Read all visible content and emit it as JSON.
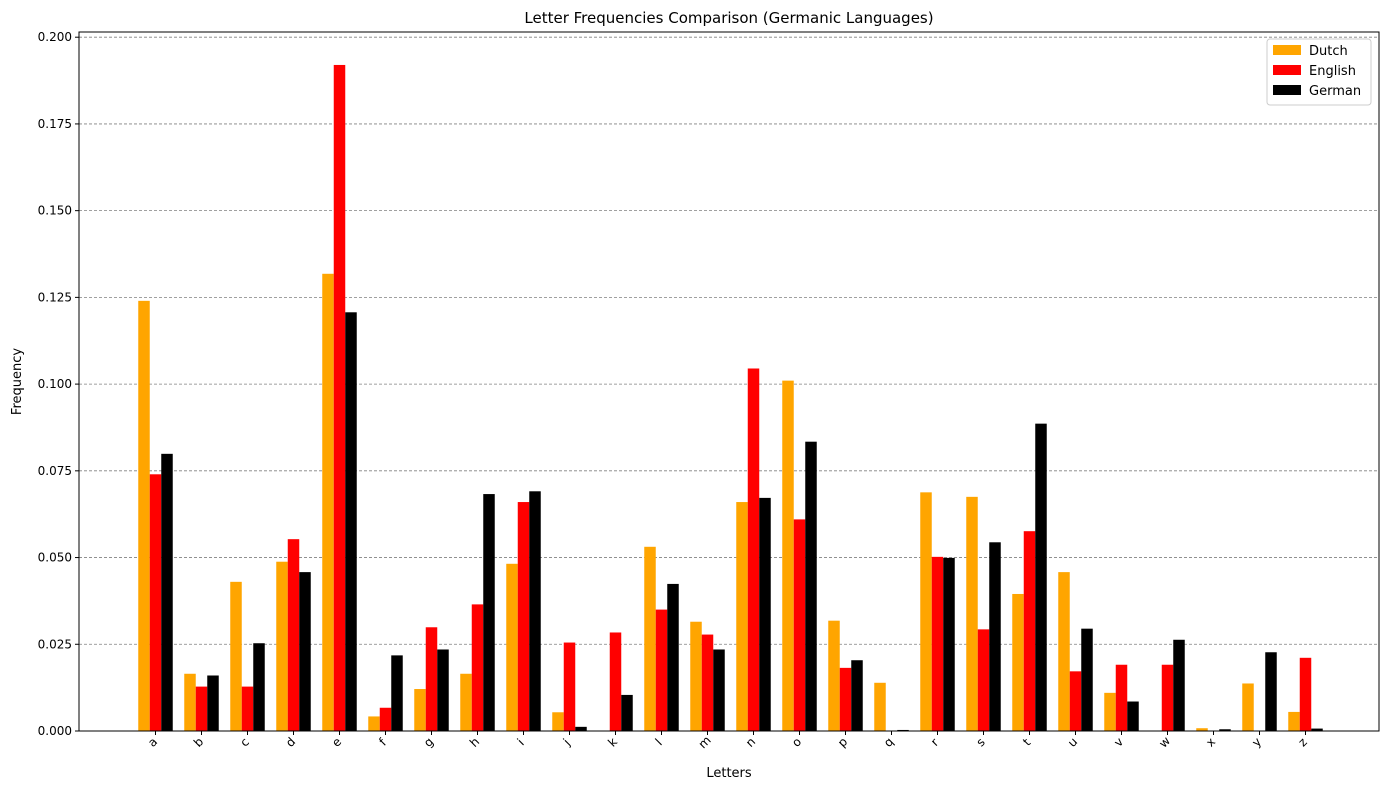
{
  "chart_data": {
    "type": "bar",
    "title": "Letter Frequencies Comparison (Germanic Languages)",
    "xlabel": "Letters",
    "ylabel": "Frequency",
    "ylim": [
      0,
      0.2015
    ],
    "yticks": [
      0.0,
      0.025,
      0.05,
      0.075,
      0.1,
      0.125,
      0.15,
      0.175,
      0.2
    ],
    "ytick_labels": [
      "0.000",
      "0.025",
      "0.050",
      "0.075",
      "0.100",
      "0.125",
      "0.150",
      "0.175",
      "0.200"
    ],
    "grid": "horizontal dashed",
    "legend_position": "top-right",
    "categories": [
      "a",
      "b",
      "c",
      "d",
      "e",
      "f",
      "g",
      "h",
      "i",
      "j",
      "k",
      "l",
      "m",
      "n",
      "o",
      "p",
      "q",
      "r",
      "s",
      "t",
      "u",
      "v",
      "w",
      "x",
      "y",
      "z"
    ],
    "series": [
      {
        "name": "Dutch",
        "color": "#ffa500",
        "values": [
          0.124,
          0.0165,
          0.043,
          0.0488,
          0.1318,
          0.0042,
          0.0121,
          0.0165,
          0.0482,
          0.0054,
          0.0,
          0.0531,
          0.0315,
          0.066,
          0.101,
          0.0318,
          0.0139,
          0.0688,
          0.0675,
          0.0395,
          0.0458,
          0.011,
          0.0,
          0.0008,
          0.0137,
          0.0055
        ]
      },
      {
        "name": "English",
        "color": "#ff0000",
        "values": [
          0.074,
          0.0128,
          0.0128,
          0.0553,
          0.192,
          0.0067,
          0.0299,
          0.0365,
          0.066,
          0.0255,
          0.0284,
          0.035,
          0.0278,
          0.1045,
          0.061,
          0.0182,
          0.0,
          0.0502,
          0.0293,
          0.0576,
          0.0172,
          0.0191,
          0.0191,
          0.0,
          0.0,
          0.0211
        ]
      },
      {
        "name": "German",
        "color": "#000000",
        "values": [
          0.0799,
          0.016,
          0.0253,
          0.0458,
          0.1207,
          0.0218,
          0.0235,
          0.0683,
          0.0691,
          0.0012,
          0.0104,
          0.0424,
          0.0235,
          0.0672,
          0.0834,
          0.0204,
          0.0003,
          0.0499,
          0.0544,
          0.0886,
          0.0295,
          0.0085,
          0.0263,
          0.0005,
          0.0227,
          0.0007
        ]
      }
    ]
  }
}
